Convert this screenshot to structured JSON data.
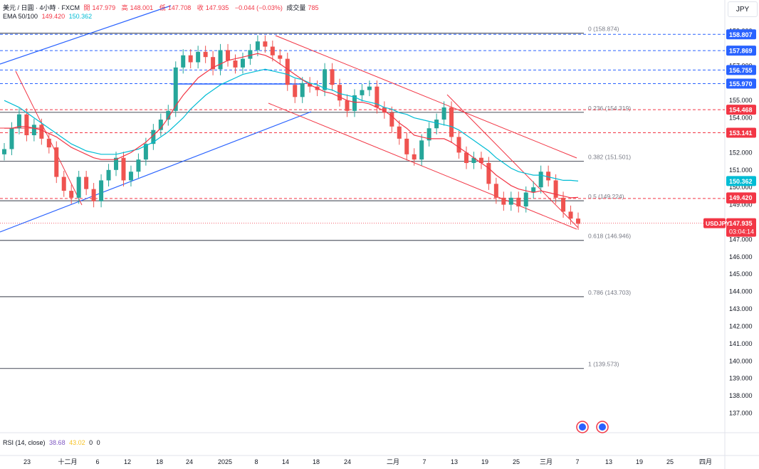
{
  "header": {
    "symbol": "美元 / 日圓 · 4小時 · FXCM",
    "open_label": "開",
    "open": "147.979",
    "high_label": "高",
    "high": "148.001",
    "low_label": "低",
    "low": "147.708",
    "close_label": "收",
    "close": "147.935",
    "change": "−0.044 (−0.03%)",
    "volume_label": "成交量",
    "volume": "785",
    "ema_label": "EMA 50/100",
    "ema50": "149.420",
    "ema100": "150.362"
  },
  "currency": "JPY",
  "rsi": {
    "label": "RSI (14, close)",
    "v1": "38.68",
    "v2": "43.02",
    "v3": "0",
    "v4": "0"
  },
  "colors": {
    "up": "#26a69a",
    "down": "#ef5350",
    "ema50": "#f23645",
    "ema100": "#00bcd4",
    "trend_blue": "#2962ff",
    "fib": "#787b86",
    "price_label": "#f23645"
  },
  "chart_data": {
    "type": "candlestick",
    "symbol": "USDJPY",
    "ylim": [
      136.6,
      159.6
    ],
    "price_ticks": [
      "159.000",
      "158.000",
      "157.000",
      "156.000",
      "155.000",
      "154.000",
      "153.000",
      "152.000",
      "151.000",
      "150.000",
      "149.000",
      "148.000",
      "147.000",
      "146.000",
      "145.000",
      "144.000",
      "143.000",
      "142.000",
      "141.000",
      "140.000",
      "139.000",
      "138.000",
      "137.000"
    ],
    "time_labels": [
      "23",
      "十二月",
      "6",
      "12",
      "18",
      "24",
      "2025",
      "8",
      "14",
      "18",
      "24",
      "二月",
      "7",
      "13",
      "19",
      "25",
      "三月",
      "7",
      "13",
      "19",
      "25",
      "四月"
    ],
    "fib_levels": [
      {
        "label": "0 (158.874)",
        "value": 158.874
      },
      {
        "label": "0.236 (154.319)",
        "value": 154.319
      },
      {
        "label": "0.382 (151.501)",
        "value": 151.501
      },
      {
        "label": "0.5 (149.224)",
        "value": 149.224
      },
      {
        "label": "0.618 (146.946)",
        "value": 146.946
      },
      {
        "label": "0.786 (143.703)",
        "value": 143.703
      },
      {
        "label": "1 (139.573)",
        "value": 139.573
      }
    ],
    "dashed_levels": [
      {
        "value": 158.807,
        "label": "158.807",
        "color": "#2962ff"
      },
      {
        "value": 157.869,
        "label": "157.869",
        "color": "#2962ff"
      },
      {
        "value": 156.755,
        "label": "156.755",
        "color": "#2962ff"
      },
      {
        "value": 155.97,
        "label": "155.970",
        "color": "#2962ff"
      },
      {
        "value": 154.468,
        "label": "154.468",
        "color": "#f23645"
      },
      {
        "value": 153.141,
        "label": "153.141",
        "color": "#f23645"
      },
      {
        "value": 149.357,
        "label": "149.357",
        "color": "#f23645"
      }
    ],
    "ema_labels": [
      {
        "value": 150.362,
        "label": "150.362",
        "color": "#00bcd4"
      },
      {
        "value": 149.42,
        "label": "149.420",
        "color": "#f23645"
      }
    ],
    "last_price": {
      "value": 147.935,
      "label": "147.935",
      "countdown": "03:04:14",
      "tag": "USDJPY"
    },
    "candles_close": [
      152.2,
      153.4,
      154.2,
      153.0,
      153.6,
      152.8,
      152.3,
      150.6,
      149.8,
      149.4,
      150.6,
      149.9,
      149.2,
      150.4,
      151.0,
      151.7,
      150.4,
      150.9,
      151.6,
      152.5,
      153.3,
      153.9,
      154.4,
      156.9,
      157.6,
      157.2,
      157.8,
      157.5,
      156.8,
      157.9,
      157.3,
      156.9,
      157.4,
      157.9,
      158.4,
      158.1,
      157.6,
      157.4,
      155.9,
      155.2,
      156.0,
      155.8,
      155.6,
      156.8,
      155.9,
      155.0,
      154.4,
      155.3,
      155.6,
      155.8,
      154.6,
      154.3,
      153.5,
      152.8,
      151.9,
      151.6,
      152.7,
      153.4,
      153.9,
      154.6,
      152.9,
      152.0,
      151.4,
      151.7,
      151.4,
      150.2,
      149.4,
      149.0,
      149.4,
      148.9,
      149.7,
      150.0,
      150.9,
      150.4,
      149.4,
      148.6,
      148.2,
      147.9
    ],
    "ema50": [
      153.4,
      153.4,
      153.5,
      153.5,
      153.4,
      153.3,
      153.1,
      152.9,
      152.6,
      152.3,
      152.1,
      151.9,
      151.7,
      151.6,
      151.6,
      151.6,
      151.8,
      152.0,
      152.3,
      152.6,
      153.0,
      153.4,
      154.0,
      154.7,
      155.3,
      155.8,
      156.3,
      156.6,
      156.9,
      157.1,
      157.3,
      157.4,
      157.5,
      157.6,
      157.7,
      157.6,
      157.4,
      157.1,
      156.8,
      156.5,
      156.2,
      155.9,
      155.7,
      155.5,
      155.4,
      155.2,
      155.0,
      154.9,
      154.9,
      154.8,
      154.6,
      154.4,
      154.1,
      153.7,
      153.4,
      153.0,
      152.9,
      152.8,
      152.8,
      152.8,
      152.6,
      152.3,
      152.0,
      151.7,
      151.4,
      151.1,
      150.7,
      150.4,
      150.1,
      149.9,
      149.8,
      149.7,
      149.8,
      149.7,
      149.6,
      149.5,
      149.4,
      149.42
    ],
    "ema100": [
      155.0,
      154.8,
      154.6,
      154.3,
      154.0,
      153.7,
      153.4,
      153.1,
      152.8,
      152.5,
      152.3,
      152.1,
      152.0,
      151.9,
      151.9,
      151.9,
      152.0,
      152.1,
      152.2,
      152.4,
      152.6,
      152.9,
      153.2,
      153.6,
      154.0,
      154.5,
      154.9,
      155.3,
      155.6,
      155.9,
      156.1,
      156.3,
      156.5,
      156.6,
      156.7,
      156.8,
      156.7,
      156.6,
      156.5,
      156.3,
      156.2,
      156.0,
      155.9,
      155.7,
      155.6,
      155.4,
      155.3,
      155.2,
      155.0,
      154.9,
      154.8,
      154.6,
      154.5,
      154.3,
      154.2,
      154.0,
      153.9,
      153.8,
      153.7,
      153.6,
      153.5,
      153.3,
      153.0,
      152.7,
      152.4,
      152.1,
      151.7,
      151.4,
      151.1,
      150.9,
      150.8,
      150.7,
      150.7,
      150.6,
      150.5,
      150.4,
      150.4,
      150.362
    ]
  }
}
